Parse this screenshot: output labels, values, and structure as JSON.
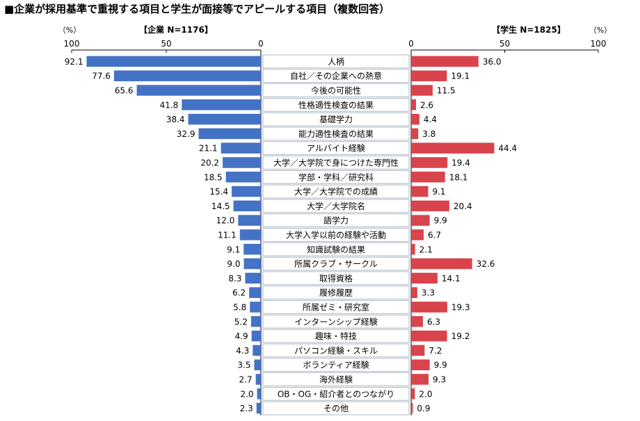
{
  "title": "■企業が採用基準で重視する項目と学生が面接等でアピールする項目（複数回答）",
  "left_header": "【企業 N=1176】",
  "right_header": "【学生 N=1825】",
  "unit": "（%）",
  "left_ticks": [
    "100",
    "50",
    "0"
  ],
  "right_ticks": [
    "0",
    "50",
    "100"
  ],
  "colors": {
    "company": "#4472c4",
    "student": "#d9434b"
  },
  "chart_data": {
    "type": "bar",
    "orientation": "horizontal-butterfly",
    "xlim": [
      0,
      100
    ],
    "categories": [
      "人柄",
      "自社／その企業への熱意",
      "今後の可能性",
      "性格適性検査の結果",
      "基礎学力",
      "能力適性検査の結果",
      "アルバイト経験",
      "大学／大学院で身につけた専門性",
      "学部・学科／研究科",
      "大学／大学院での成績",
      "大学／大学院名",
      "語学力",
      "大学入学以前の経験や活動",
      "知識試験の結果",
      "所属クラブ・サークル",
      "取得資格",
      "履修履歴",
      "所属ゼミ・研究室",
      "インターンシップ経験",
      "趣味・特技",
      "パソコン経験・スキル",
      "ボランティア経験",
      "海外経験",
      "OB・OG・紹介者とのつながり",
      "その他"
    ],
    "series": [
      {
        "name": "企業 N=1176",
        "values": [
          92.1,
          77.6,
          65.6,
          41.8,
          38.4,
          32.9,
          21.1,
          20.2,
          18.5,
          15.4,
          14.5,
          12.0,
          11.1,
          9.1,
          9.0,
          8.3,
          6.2,
          5.8,
          5.2,
          4.9,
          4.3,
          3.5,
          2.7,
          2.0,
          2.3
        ]
      },
      {
        "name": "学生 N=1825",
        "values": [
          36.0,
          19.1,
          11.5,
          2.6,
          4.4,
          3.8,
          44.4,
          19.4,
          18.1,
          9.1,
          20.4,
          9.9,
          6.7,
          2.1,
          32.6,
          14.1,
          3.3,
          19.3,
          6.3,
          19.2,
          7.2,
          9.9,
          9.3,
          2.0,
          0.9
        ]
      }
    ]
  }
}
